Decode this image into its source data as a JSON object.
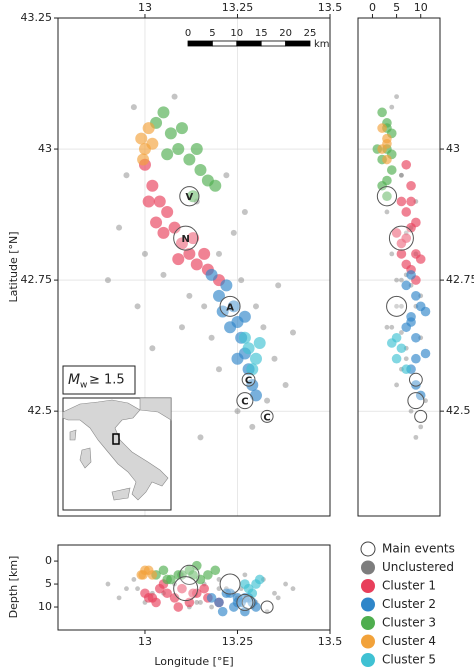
{
  "chart_data": {
    "type": "scatter",
    "map": {
      "xlim": [
        12.765,
        13.5
      ],
      "ylim": [
        42.3,
        43.25
      ],
      "xticks": [
        13,
        13.25,
        13.5
      ],
      "yticks": [
        42.5,
        42.75,
        43,
        43.25
      ],
      "ylabel": "Latitude [°N]",
      "grid": true
    },
    "lat_section": {
      "xlim": [
        -3,
        14
      ],
      "xticks": [
        0,
        5,
        10
      ],
      "yticks": [
        42.5,
        42.75,
        43
      ]
    },
    "lon_section": {
      "ylim": [
        15,
        -3.5
      ],
      "yticks": [
        0,
        5,
        10
      ],
      "ylabel": "Depth [km]",
      "xlabel": "Longitude [°E]"
    },
    "scale_bar": {
      "ticks": [
        0,
        5,
        10,
        15,
        20,
        25
      ],
      "unit": "km"
    },
    "magnitude_note": {
      "symbol": "M",
      "subscript": "w",
      "text": "≥ 1.5"
    },
    "main_events": {
      "name": "Main events",
      "labels": [
        "V",
        "N",
        "A",
        "C",
        "C",
        "C"
      ],
      "points": [
        [
          13.12,
          42.91,
          3
        ],
        [
          13.11,
          42.83,
          6
        ],
        [
          13.23,
          42.7,
          5
        ],
        [
          13.28,
          42.56,
          9
        ],
        [
          13.27,
          42.52,
          9
        ],
        [
          13.33,
          42.49,
          10
        ]
      ],
      "magnitudes": [
        5.9,
        6.5,
        6.0,
        5.1,
        5.5,
        5.0
      ]
    },
    "series": [
      {
        "name": "Unclustered",
        "color": "#7d7d7d",
        "points": [
          [
            12.95,
            42.95,
            6
          ],
          [
            12.97,
            43.08,
            4
          ],
          [
            13.0,
            42.8,
            9
          ],
          [
            13.05,
            42.76,
            7
          ],
          [
            13.12,
            42.72,
            10
          ],
          [
            13.16,
            42.7,
            5
          ],
          [
            13.2,
            42.8,
            4
          ],
          [
            13.24,
            42.84,
            7
          ],
          [
            13.26,
            42.75,
            6
          ],
          [
            13.3,
            42.7,
            9
          ],
          [
            13.32,
            42.66,
            4
          ],
          [
            13.35,
            42.6,
            7
          ],
          [
            13.33,
            42.52,
            11
          ],
          [
            13.25,
            42.5,
            8
          ],
          [
            13.2,
            42.58,
            6
          ],
          [
            13.18,
            42.64,
            10
          ],
          [
            13.14,
            42.9,
            9
          ],
          [
            13.22,
            42.95,
            6
          ],
          [
            13.27,
            42.88,
            3
          ],
          [
            13.08,
            43.1,
            5
          ],
          [
            12.93,
            42.85,
            8
          ],
          [
            12.98,
            42.7,
            6
          ],
          [
            13.38,
            42.55,
            5
          ],
          [
            13.36,
            42.74,
            8
          ],
          [
            13.1,
            42.66,
            3
          ],
          [
            13.29,
            42.47,
            10
          ],
          [
            13.02,
            42.62,
            7
          ],
          [
            13.4,
            42.65,
            6
          ],
          [
            13.15,
            42.45,
            9
          ],
          [
            12.9,
            42.75,
            5
          ]
        ]
      },
      {
        "name": "Cluster 1",
        "color": "#e83f5b",
        "points": [
          [
            13.0,
            42.97,
            7
          ],
          [
            13.02,
            42.93,
            8
          ],
          [
            13.04,
            42.9,
            6
          ],
          [
            13.03,
            42.86,
            9
          ],
          [
            13.06,
            42.88,
            7
          ],
          [
            13.08,
            42.85,
            8
          ],
          [
            13.1,
            42.82,
            6
          ],
          [
            13.12,
            42.8,
            9
          ],
          [
            13.14,
            42.78,
            7
          ],
          [
            13.17,
            42.77,
            8
          ],
          [
            13.2,
            42.75,
            9
          ],
          [
            13.05,
            42.84,
            5
          ],
          [
            13.09,
            42.79,
            10
          ],
          [
            13.13,
            42.83,
            7
          ],
          [
            13.01,
            42.9,
            8
          ],
          [
            13.16,
            42.8,
            6
          ]
        ]
      },
      {
        "name": "Cluster 2",
        "color": "#2f86c9",
        "points": [
          [
            13.18,
            42.76,
            8
          ],
          [
            13.2,
            42.72,
            9
          ],
          [
            13.22,
            42.74,
            7
          ],
          [
            13.24,
            42.7,
            10
          ],
          [
            13.25,
            42.67,
            8
          ],
          [
            13.26,
            42.64,
            9
          ],
          [
            13.27,
            42.61,
            11
          ],
          [
            13.28,
            42.58,
            8
          ],
          [
            13.29,
            42.55,
            9
          ],
          [
            13.3,
            42.53,
            10
          ],
          [
            13.23,
            42.66,
            7
          ],
          [
            13.21,
            42.69,
            11
          ],
          [
            13.27,
            42.68,
            8
          ],
          [
            13.25,
            42.6,
            9
          ]
        ]
      },
      {
        "name": "Cluster 3",
        "color": "#4fae4f",
        "points": [
          [
            13.03,
            43.05,
            3
          ],
          [
            13.05,
            43.07,
            2
          ],
          [
            13.07,
            43.03,
            4
          ],
          [
            13.09,
            43.0,
            3
          ],
          [
            13.12,
            42.98,
            2
          ],
          [
            13.15,
            42.96,
            4
          ],
          [
            13.17,
            42.94,
            3
          ],
          [
            13.19,
            42.93,
            2
          ],
          [
            13.1,
            43.04,
            3
          ],
          [
            13.06,
            42.99,
            4
          ],
          [
            13.14,
            43.0,
            1
          ],
          [
            13.13,
            42.91,
            3
          ]
        ]
      },
      {
        "name": "Cluster 4",
        "color": "#f2a23a",
        "points": [
          [
            12.99,
            43.02,
            3
          ],
          [
            13.0,
            43.0,
            2
          ],
          [
            12.995,
            42.98,
            3
          ],
          [
            13.01,
            43.04,
            2
          ],
          [
            13.02,
            43.01,
            3
          ]
        ]
      },
      {
        "name": "Cluster 5",
        "color": "#3fc1d3",
        "points": [
          [
            13.27,
            42.64,
            5
          ],
          [
            13.28,
            42.62,
            6
          ],
          [
            13.3,
            42.6,
            5
          ],
          [
            13.29,
            42.58,
            7
          ],
          [
            13.31,
            42.63,
            4
          ]
        ]
      }
    ]
  }
}
